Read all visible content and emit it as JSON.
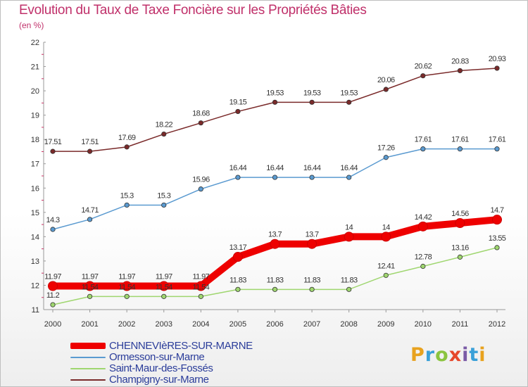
{
  "header": {
    "title": "Evolution du Taux de Taxe Foncière sur les Propriétés Bâties",
    "subtitle": "(en %)"
  },
  "logo": {
    "text": "Proxiti",
    "colors": [
      "#e8a21e",
      "#3aa0d8",
      "#8bc43f",
      "#e6472b",
      "#7a5ba6",
      "#3aa0d8",
      "#e8a21e"
    ]
  },
  "chart_data": {
    "type": "line",
    "x": [
      2000,
      2001,
      2002,
      2003,
      2004,
      2005,
      2006,
      2007,
      2008,
      2009,
      2010,
      2011,
      2012
    ],
    "ylim": [
      11,
      22
    ],
    "yticks": [
      11,
      12,
      13,
      14,
      15,
      16,
      17,
      18,
      19,
      20,
      21,
      22
    ],
    "grid": false,
    "legend_position": "bottom-left",
    "series": [
      {
        "name": "Champigny-sur-Marne",
        "color": "#7a2a2a",
        "labels": [
          "17.51",
          "17.51",
          "17.69",
          "18.22",
          "18.68",
          "19.15",
          "19.53",
          "19.53",
          "19.53",
          "20.06",
          "20.62",
          "20.83",
          "20.93"
        ],
        "values": [
          17.51,
          17.51,
          17.69,
          18.22,
          18.68,
          19.15,
          19.53,
          19.53,
          19.53,
          20.06,
          20.62,
          20.83,
          20.93
        ]
      },
      {
        "name": "Ormesson-sur-Marne",
        "color": "#5a9ad0",
        "labels": [
          "14.3",
          "14.71",
          "15.3",
          "15.3",
          "15.96",
          "16.44",
          "16.44",
          "16.44",
          "16.44",
          "17.26",
          "17.61",
          "17.61",
          "17.61"
        ],
        "values": [
          14.3,
          14.71,
          15.3,
          15.3,
          15.96,
          16.44,
          16.44,
          16.44,
          16.44,
          17.26,
          17.61,
          17.61,
          17.61
        ]
      },
      {
        "name": "Saint-Maur-des-Fossés",
        "color": "#9fd66f",
        "labels": [
          "11.2",
          "11.54",
          "11.54",
          "11.54",
          "11.54",
          "11.83",
          "11.83",
          "11.83",
          "11.83",
          "12.41",
          "12.78",
          "13.16",
          "13.55"
        ],
        "values": [
          11.2,
          11.54,
          11.54,
          11.54,
          11.54,
          11.83,
          11.83,
          11.83,
          11.83,
          12.41,
          12.78,
          13.16,
          13.55
        ]
      },
      {
        "name": "CHENNEVIèRES-SUR-MARNE",
        "color": "#ee0000",
        "labels": [
          "11.97",
          "11.97",
          "11.97",
          "11.97",
          "11.97",
          "13.17",
          "13.7",
          "13.7",
          "14",
          "14",
          "14.42",
          "14.56",
          "14.7"
        ],
        "values": [
          11.97,
          11.97,
          11.97,
          11.97,
          11.97,
          13.17,
          13.7,
          13.7,
          14,
          14,
          14.42,
          14.56,
          14.7
        ]
      }
    ],
    "legend": [
      "CHENNEVIèRES-SUR-MARNE",
      "Ormesson-sur-Marne",
      "Saint-Maur-des-Fossés",
      "Champigny-sur-Marne"
    ]
  }
}
